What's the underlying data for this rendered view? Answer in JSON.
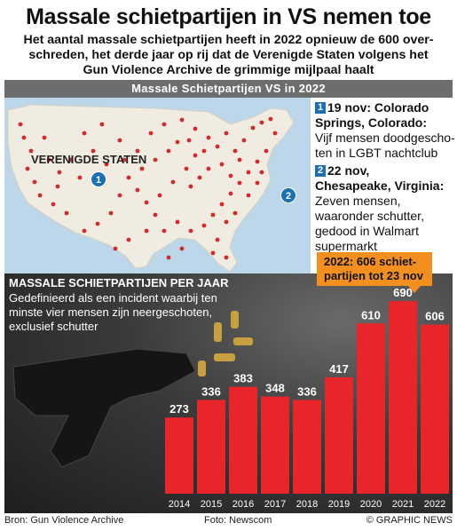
{
  "header": {
    "title": "Massale schietpartijen in VS nemen toe",
    "subtitle_lines": [
      "Het aantal massale schietpartijen heeft in 2022 opnieuw de 600 over-",
      "schreden, het derde jaar op rij dat de Verenigde Staten volgens het",
      "Gun Violence Archive de grimmige mijlpaal haalt"
    ]
  },
  "map_section": {
    "bar_title": "Massale Schietpartijen VS in 2022",
    "country_label": "VERENIGDE STATEN",
    "markers": [
      "1",
      "2"
    ]
  },
  "events": [
    {
      "num": "1",
      "date": "19 nov: Colorado",
      "place": "Springs, Colorado:",
      "desc": "Vijf mensen doodgescho-ten in LGBT nachtclub"
    },
    {
      "num": "2",
      "date": "22 nov,",
      "place": "Chesapeake, Virginia:",
      "desc": "Zeven mensen, waaronder schutter, gedood in Walmart supermarkt"
    }
  ],
  "chart_data": {
    "type": "bar",
    "title": "Massale schietpartijen per jaar",
    "note": "Gedefinieerd als een incident waarbij ten minste vier mensen zijn neergeschoten, exclusief schutter",
    "categories": [
      "2014",
      "2015",
      "2016",
      "2017",
      "2018",
      "2019",
      "2020",
      "2021",
      "2022"
    ],
    "values": [
      273,
      336,
      383,
      348,
      336,
      417,
      610,
      690,
      606
    ],
    "bar_color": "#e8252a",
    "callout": "2022: 606 schiet-partijen tot 23 nov"
  },
  "footer": {
    "source": "Bron: Gun Violence Archive",
    "photo": "Foto: Newscom",
    "credit": "© GRAPHIC NEWS"
  }
}
